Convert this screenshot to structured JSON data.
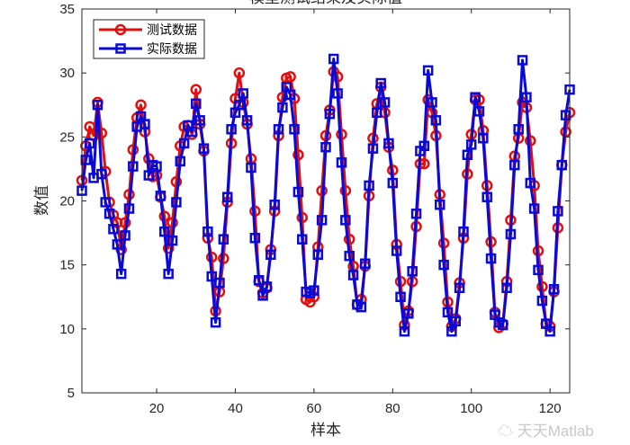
{
  "chart_data": {
    "type": "line",
    "title": "模型测试结果及实际值",
    "xlabel": "样本",
    "ylabel": "数值",
    "xlim": [
      1,
      125
    ],
    "ylim": [
      5,
      35
    ],
    "xticks": [
      20,
      40,
      60,
      80,
      100,
      120
    ],
    "yticks": [
      5,
      10,
      15,
      20,
      25,
      30,
      35
    ],
    "grid": false,
    "legend_position": "top-left",
    "x": "1..125",
    "series": [
      {
        "name": "测试数据",
        "color": "#e01010",
        "marker": "circle",
        "values": [
          21.6,
          24.3,
          25.8,
          25.1,
          27.7,
          25.3,
          22.3,
          19.9,
          18.9,
          18.3,
          16.2,
          18.3,
          20.5,
          24.0,
          26.5,
          27.5,
          25.4,
          23.3,
          21.9,
          22.0,
          20.3,
          18.8,
          16.3,
          18.3,
          21.5,
          24.3,
          25.8,
          25.9,
          25.2,
          28.7,
          26.0,
          23.9,
          17.1,
          15.6,
          11.4,
          12.9,
          15.5,
          19.9,
          24.5,
          28.0,
          30.0,
          27.7,
          26.0,
          23.3,
          19.2,
          13.7,
          12.8,
          13.2,
          16.2,
          19.2,
          25.1,
          28.1,
          29.6,
          29.7,
          28.0,
          23.6,
          18.7,
          12.3,
          12.1,
          12.5,
          16.4,
          20.8,
          25.1,
          27.1,
          30.1,
          29.7,
          25.2,
          20.8,
          17.0,
          14.9,
          11.9,
          12.3,
          14.9,
          20.4,
          24.9,
          27.6,
          28.9,
          26.9,
          24.2,
          22.4,
          16.6,
          13.7,
          10.3,
          11.4,
          13.7,
          18.0,
          22.9,
          22.9,
          27.9,
          26.9,
          25.1,
          20.5,
          16.7,
          12.1,
          10.2,
          10.8,
          13.6,
          17.1,
          22.1,
          25.2,
          27.9,
          27.9,
          25.5,
          21.2,
          16.8,
          11.3,
          10.1,
          10.4,
          13.7,
          18.5,
          23.5,
          24.9,
          27.7,
          27.3,
          24.7,
          21.2,
          16.1,
          13.3,
          10.4,
          10.2,
          12.9,
          17.9,
          22.8,
          25.4,
          26.9
        ]
      },
      {
        "name": "实际数据",
        "color": "#0a0ad8",
        "marker": "square",
        "values": [
          20.8,
          23.2,
          24.5,
          21.8,
          27.5,
          22.1,
          19.9,
          19.0,
          17.8,
          16.6,
          14.3,
          17.3,
          19.4,
          22.7,
          25.8,
          26.6,
          26.0,
          22.0,
          22.8,
          22.7,
          20.4,
          17.6,
          14.3,
          16.9,
          19.9,
          23.1,
          24.5,
          25.9,
          25.4,
          27.6,
          26.3,
          24.1,
          17.6,
          14.1,
          10.5,
          13.6,
          17.0,
          20.3,
          25.6,
          26.9,
          27.5,
          28.4,
          26.3,
          22.6,
          17.1,
          13.8,
          12.6,
          13.3,
          15.8,
          19.7,
          25.6,
          27.3,
          28.9,
          28.3,
          25.6,
          20.7,
          17.0,
          12.9,
          12.8,
          13.0,
          15.8,
          18.5,
          24.2,
          26.8,
          31.1,
          28.4,
          23.0,
          18.5,
          15.7,
          14.2,
          11.9,
          11.7,
          15.1,
          21.2,
          24.1,
          26.9,
          29.2,
          27.7,
          24.5,
          21.4,
          16.1,
          12.5,
          9.8,
          11.2,
          14.5,
          19.0,
          23.9,
          24.3,
          30.2,
          27.7,
          26.3,
          19.7,
          15.0,
          11.3,
          9.8,
          10.6,
          13.2,
          17.6,
          23.6,
          24.4,
          28.1,
          27.0,
          24.9,
          20.3,
          15.5,
          11.1,
          10.5,
          10.3,
          13.2,
          17.4,
          22.8,
          25.6,
          31.0,
          28.1,
          21.4,
          19.4,
          14.6,
          12.2,
          10.4,
          9.8,
          13.1,
          19.2,
          22.8,
          26.7,
          28.7
        ]
      }
    ]
  },
  "watermark": "天天Matlab"
}
